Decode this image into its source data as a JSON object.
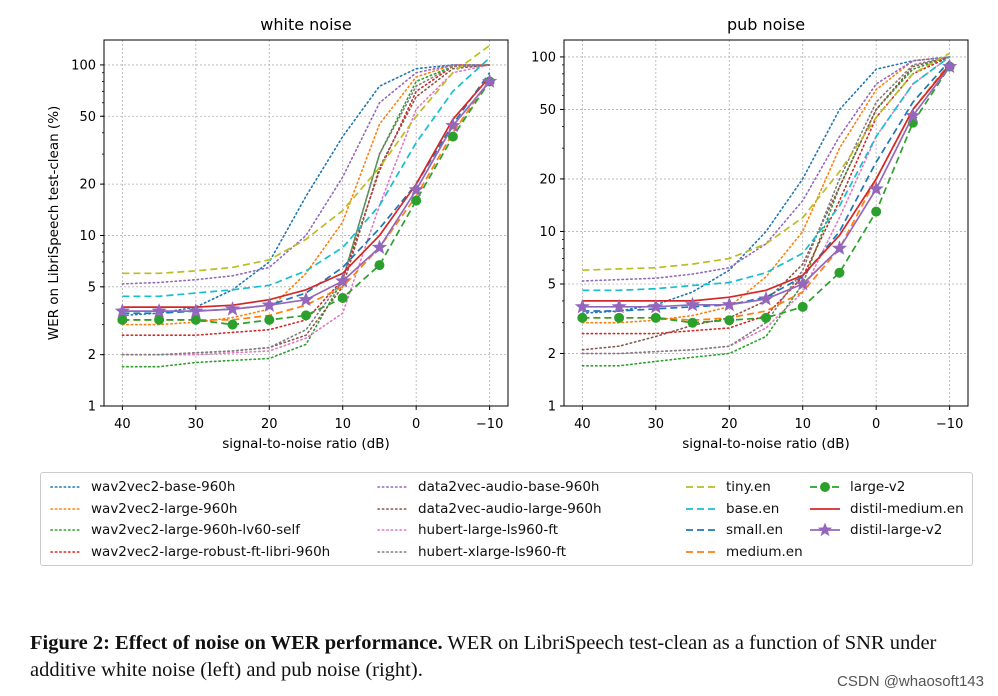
{
  "chart_data": [
    {
      "type": "line",
      "title": "white noise",
      "xlabel": "signal-to-noise ratio (dB)",
      "ylabel": "WER on LibriSpeech test-clean (%)",
      "xlim": [
        42.5,
        -12.5
      ],
      "x_ticks": [
        40,
        30,
        20,
        10,
        0,
        -10
      ],
      "x_tick_labels": [
        "40",
        "30",
        "20",
        "10",
        "0",
        "−10"
      ],
      "yscale": "log",
      "ylim": [
        1,
        140
      ],
      "y_ticks": [
        1,
        2,
        5,
        10,
        20,
        50,
        100
      ],
      "y_tick_labels": [
        "1",
        "2",
        "5",
        "10",
        "20",
        "50",
        "100"
      ],
      "grid": true,
      "x": [
        40,
        35,
        30,
        25,
        20,
        15,
        10,
        5,
        0,
        -5,
        -10
      ],
      "series": [
        {
          "name": "wav2vec2-base-960h",
          "values": [
            3.4,
            3.5,
            3.8,
            4.8,
            7,
            17,
            38,
            75,
            95,
            100,
            100
          ]
        },
        {
          "name": "wav2vec2-large-960h",
          "values": [
            3.0,
            3.0,
            3.1,
            3.3,
            3.7,
            6,
            12,
            45,
            85,
            100,
            100
          ]
        },
        {
          "name": "wav2vec2-large-960h-lv60-self",
          "values": [
            1.7,
            1.7,
            1.8,
            1.85,
            1.9,
            2.3,
            5.5,
            30,
            80,
            98,
            100
          ]
        },
        {
          "name": "wav2vec2-large-robust-ft-libri-960h",
          "values": [
            2.6,
            2.6,
            2.6,
            2.7,
            2.8,
            3.2,
            5.5,
            24,
            70,
            98,
            100
          ]
        },
        {
          "name": "data2vec-audio-base-960h",
          "values": [
            5.2,
            5.3,
            5.5,
            5.8,
            6.5,
            10,
            22,
            60,
            90,
            100,
            100
          ]
        },
        {
          "name": "data2vec-audio-large-960h",
          "values": [
            2.0,
            2.0,
            2.05,
            2.1,
            2.2,
            2.6,
            5,
            25,
            65,
            95,
            100
          ]
        },
        {
          "name": "hubert-large-ls960-ft",
          "values": [
            2.0,
            2.0,
            2.0,
            2.05,
            2.1,
            2.5,
            3.5,
            15,
            55,
            90,
            100
          ]
        },
        {
          "name": "hubert-xlarge-ls960-ft",
          "values": [
            2.0,
            2.0,
            2.05,
            2.1,
            2.2,
            2.8,
            5.5,
            30,
            75,
            98,
            100
          ]
        },
        {
          "name": "tiny.en",
          "values": [
            6.0,
            6.0,
            6.2,
            6.5,
            7.2,
            9.5,
            14,
            25,
            50,
            90,
            130
          ]
        },
        {
          "name": "base.en",
          "values": [
            4.4,
            4.4,
            4.6,
            4.8,
            5.1,
            6.2,
            8.5,
            15,
            35,
            70,
            110
          ]
        },
        {
          "name": "small.en",
          "values": [
            3.5,
            3.5,
            3.6,
            3.7,
            3.9,
            4.6,
            6.5,
            11,
            20,
            45,
            90
          ]
        },
        {
          "name": "medium.en",
          "values": [
            3.2,
            3.2,
            3.2,
            3.2,
            3.4,
            3.9,
            5,
            8.5,
            17,
            40,
            82
          ]
        },
        {
          "name": "large-v2",
          "values": [
            3.2,
            3.2,
            3.2,
            3.0,
            3.2,
            3.4,
            4.3,
            6.7,
            16,
            38,
            80
          ]
        },
        {
          "name": "distil-medium.en",
          "values": [
            3.8,
            3.8,
            3.8,
            3.9,
            4.2,
            4.8,
            6,
            10,
            20,
            48,
            85
          ]
        },
        {
          "name": "distil-large-v2",
          "values": [
            3.6,
            3.6,
            3.6,
            3.7,
            3.9,
            4.2,
            5.4,
            8.5,
            18.5,
            44,
            80
          ]
        }
      ]
    },
    {
      "type": "line",
      "title": "pub noise",
      "xlabel": "signal-to-noise ratio (dB)",
      "ylabel": "",
      "xlim": [
        42.5,
        -12.5
      ],
      "x_ticks": [
        40,
        30,
        20,
        10,
        0,
        -10
      ],
      "x_tick_labels": [
        "40",
        "30",
        "20",
        "10",
        "0",
        "−10"
      ],
      "yscale": "log",
      "ylim": [
        1,
        125
      ],
      "y_ticks": [
        1,
        2,
        5,
        10,
        20,
        50,
        100
      ],
      "y_tick_labels": [
        "1",
        "2",
        "5",
        "10",
        "20",
        "50",
        "100"
      ],
      "grid": true,
      "x": [
        40,
        35,
        30,
        25,
        20,
        15,
        10,
        5,
        0,
        -5,
        -10
      ],
      "series": [
        {
          "name": "wav2vec2-base-960h",
          "values": [
            3.4,
            3.5,
            3.8,
            4.5,
            6,
            10,
            20,
            50,
            85,
            95,
            100
          ]
        },
        {
          "name": "wav2vec2-large-960h",
          "values": [
            3.0,
            3.0,
            3.1,
            3.3,
            3.7,
            5.5,
            10,
            30,
            65,
            95,
            100
          ]
        },
        {
          "name": "wav2vec2-large-960h-lv60-self",
          "values": [
            1.7,
            1.7,
            1.8,
            1.9,
            2.0,
            2.5,
            5,
            18,
            50,
            85,
            100
          ]
        },
        {
          "name": "wav2vec2-large-robust-ft-libri-960h",
          "values": [
            2.6,
            2.6,
            2.6,
            2.7,
            2.8,
            3.3,
            5.5,
            15,
            45,
            80,
            100
          ]
        },
        {
          "name": "data2vec-audio-base-960h",
          "values": [
            5.2,
            5.3,
            5.4,
            5.7,
            6.2,
            8.5,
            15,
            35,
            70,
            95,
            100
          ]
        },
        {
          "name": "data2vec-audio-large-960h",
          "values": [
            2.1,
            2.2,
            2.5,
            2.9,
            3.2,
            4.0,
            6.5,
            18,
            50,
            88,
            100
          ]
        },
        {
          "name": "hubert-large-ls960-ft",
          "values": [
            2.0,
            2.0,
            2.05,
            2.1,
            2.2,
            2.8,
            4.5,
            12,
            35,
            70,
            100
          ]
        },
        {
          "name": "hubert-xlarge-ls960-ft",
          "values": [
            2.0,
            2.0,
            2.05,
            2.1,
            2.2,
            3.0,
            6,
            20,
            55,
            90,
            100
          ]
        },
        {
          "name": "tiny.en",
          "values": [
            6.0,
            6.1,
            6.2,
            6.5,
            7,
            8.5,
            12,
            22,
            45,
            80,
            105
          ]
        },
        {
          "name": "base.en",
          "values": [
            4.6,
            4.6,
            4.7,
            4.9,
            5.1,
            5.8,
            7.5,
            14,
            35,
            70,
            100
          ]
        },
        {
          "name": "small.en",
          "values": [
            3.5,
            3.5,
            3.6,
            3.7,
            3.8,
            4.2,
            5.5,
            10,
            25,
            55,
            95
          ]
        },
        {
          "name": "medium.en",
          "values": [
            3.2,
            3.2,
            3.2,
            3.1,
            3.2,
            3.5,
            4.5,
            8,
            20,
            50,
            92
          ]
        },
        {
          "name": "large-v2",
          "values": [
            3.2,
            3.2,
            3.2,
            3.0,
            3.1,
            3.2,
            3.7,
            5.8,
            13,
            42,
            88
          ]
        },
        {
          "name": "distil-medium.en",
          "values": [
            4.0,
            4.0,
            4.0,
            4.0,
            4.2,
            4.6,
            5.6,
            9.5,
            20,
            50,
            90
          ]
        },
        {
          "name": "distil-large-v2",
          "values": [
            3.7,
            3.7,
            3.7,
            3.8,
            3.8,
            4.1,
            5.0,
            8.0,
            17.5,
            46,
            88
          ]
        }
      ]
    }
  ],
  "series_styles": [
    {
      "name": "wav2vec2-base-960h",
      "color": "#1f77b4",
      "dash": "dotted",
      "marker": "none"
    },
    {
      "name": "wav2vec2-large-960h",
      "color": "#ff7f0e",
      "dash": "dotted",
      "marker": "none"
    },
    {
      "name": "wav2vec2-large-960h-lv60-self",
      "color": "#2ca02c",
      "dash": "dotted",
      "marker": "none"
    },
    {
      "name": "wav2vec2-large-robust-ft-libri-960h",
      "color": "#d62728",
      "dash": "dotted",
      "marker": "none"
    },
    {
      "name": "data2vec-audio-base-960h",
      "color": "#9467bd",
      "dash": "dotted",
      "marker": "none"
    },
    {
      "name": "data2vec-audio-large-960h",
      "color": "#8c564b",
      "dash": "dotted",
      "marker": "none"
    },
    {
      "name": "hubert-large-ls960-ft",
      "color": "#e377c2",
      "dash": "dotted",
      "marker": "none"
    },
    {
      "name": "hubert-xlarge-ls960-ft",
      "color": "#7f7f7f",
      "dash": "dotted",
      "marker": "none"
    },
    {
      "name": "tiny.en",
      "color": "#bcbd22",
      "dash": "dashed",
      "marker": "none"
    },
    {
      "name": "base.en",
      "color": "#17becf",
      "dash": "dashed",
      "marker": "none"
    },
    {
      "name": "small.en",
      "color": "#1f77b4",
      "dash": "dashed",
      "marker": "none"
    },
    {
      "name": "medium.en",
      "color": "#ff7f0e",
      "dash": "dashed",
      "marker": "none"
    },
    {
      "name": "large-v2",
      "color": "#2ca02c",
      "dash": "dashed",
      "marker": "circle"
    },
    {
      "name": "distil-medium.en",
      "color": "#d62728",
      "dash": "solid",
      "marker": "none"
    },
    {
      "name": "distil-large-v2",
      "color": "#9467bd",
      "dash": "solid",
      "marker": "star"
    }
  ],
  "legend": {
    "placement": "bottom",
    "columns": [
      [
        "wav2vec2-base-960h",
        "wav2vec2-large-960h",
        "wav2vec2-large-960h-lv60-self",
        "wav2vec2-large-robust-ft-libri-960h"
      ],
      [
        "data2vec-audio-base-960h",
        "data2vec-audio-large-960h",
        "hubert-large-ls960-ft",
        "hubert-xlarge-ls960-ft"
      ],
      [
        "tiny.en",
        "base.en",
        "small.en",
        "medium.en"
      ],
      [
        "large-v2",
        "distil-medium.en",
        "distil-large-v2"
      ]
    ]
  },
  "caption": {
    "label": "Figure 2:",
    "bold": "Effect of noise on WER performance.",
    "text": "WER on LibriSpeech test-clean as a function of SNR under additive white noise (left) and pub noise (right)."
  },
  "watermark": "CSDN @whaosoft143"
}
